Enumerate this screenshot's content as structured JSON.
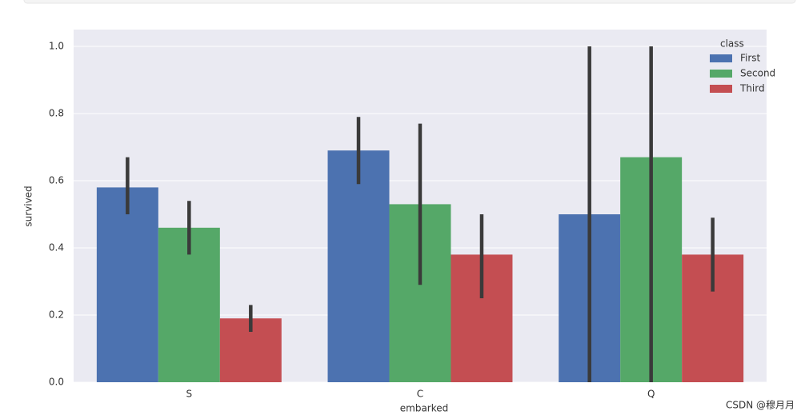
{
  "chart_data": {
    "type": "bar",
    "xlabel": "embarked",
    "ylabel": "survived",
    "categories": [
      "S",
      "C",
      "Q"
    ],
    "legend_title": "class",
    "legend": "upper right",
    "grid": true,
    "series": [
      {
        "name": "First",
        "color": "#4c72b0",
        "values": [
          0.58,
          0.69,
          0.5
        ],
        "ci": [
          [
            0.5,
            0.67
          ],
          [
            0.59,
            0.79
          ],
          [
            0,
            1
          ]
        ]
      },
      {
        "name": "Second",
        "color": "#55a868",
        "values": [
          0.46,
          0.53,
          0.67
        ],
        "ci": [
          [
            0.38,
            0.54
          ],
          [
            0.29,
            0.77
          ],
          [
            0,
            1
          ]
        ]
      },
      {
        "name": "Third",
        "color": "#c44e52",
        "values": [
          0.19,
          0.38,
          0.38
        ],
        "ci": [
          [
            0.15,
            0.23
          ],
          [
            0.25,
            0.5
          ],
          [
            0.27,
            0.49
          ]
        ]
      }
    ],
    "ylim": [
      0,
      1.05
    ],
    "yticks": [
      {
        "value": 0,
        "label": "0.0"
      },
      0.2,
      0.4,
      0.6,
      0.8,
      {
        "value": 1,
        "label": "1.0"
      }
    ],
    "watermark": "CSDN @穆月月"
  }
}
